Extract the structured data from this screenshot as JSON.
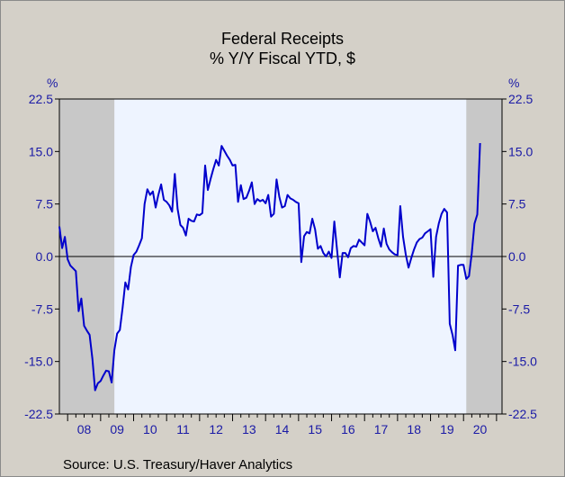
{
  "chart_data": {
    "type": "line",
    "title": "Federal Receipts",
    "subtitle": "% Y/Y   Fiscal YTD, $",
    "y_unit_left": "%",
    "y_unit_right": "%",
    "source": "Source:  U.S. Treasury/Haver Analytics",
    "ylim": [
      -22.5,
      22.5
    ],
    "y_ticks": [
      "22.5",
      "15.0",
      "7.5",
      "0.0",
      "-7.5",
      "-15.0",
      "-22.5"
    ],
    "x_range": [
      2007.75,
      2021.1667
    ],
    "x_ticks": [
      "08",
      "09",
      "10",
      "11",
      "12",
      "13",
      "14",
      "15",
      "16",
      "17",
      "18",
      "19",
      "20"
    ],
    "grid": false,
    "recessions": [
      [
        2007.75,
        2009.4167
      ],
      [
        2020.0833,
        2021.1667
      ]
    ],
    "colors": {
      "line": "#0000cc",
      "plot_bg": "#eef4ff",
      "recession": "#c8c8c8",
      "axis_text": "#1a1aa6"
    },
    "series": [
      {
        "x_start": 2007.75,
        "step_months": 1,
        "values": [
          4.3,
          1.2,
          2.8,
          -0.4,
          -1.3,
          -1.7,
          -2.1,
          -7.8,
          -6.0,
          -9.9,
          -10.6,
          -11.2,
          -14.6,
          -19.1,
          -18.1,
          -17.8,
          -17.0,
          -16.3,
          -16.4,
          -18.0,
          -13.4,
          -11.0,
          -10.5,
          -7.3,
          -3.7,
          -4.7,
          -1.5,
          0.2,
          0.7,
          1.6,
          2.6,
          7.5,
          9.6,
          8.8,
          9.3,
          7.0,
          8.8,
          10.3,
          8.1,
          7.8,
          7.3,
          6.4,
          11.8,
          6.8,
          4.5,
          4.1,
          3.0,
          5.4,
          5.1,
          5.0,
          6.0,
          5.9,
          6.2,
          13.0,
          9.5,
          11.1,
          12.5,
          13.8,
          13.0,
          15.8,
          15.1,
          14.4,
          13.8,
          13.0,
          13.1,
          7.8,
          10.2,
          8.2,
          8.4,
          9.4,
          10.6,
          7.5,
          8.2,
          7.9,
          8.1,
          7.6,
          8.8,
          5.7,
          6.1,
          11.0,
          8.5,
          7.0,
          7.2,
          8.8,
          8.3,
          8.1,
          7.8,
          7.6,
          -0.8,
          2.9,
          3.5,
          3.3,
          5.4,
          3.9,
          1.1,
          1.5,
          0.5,
          0.0,
          0.7,
          -0.2,
          5.0,
          1.0,
          -3.0,
          0.5,
          0.5,
          -0.1,
          1.2,
          1.5,
          1.4,
          2.4,
          2.0,
          1.6,
          6.1,
          5.0,
          3.6,
          4.1,
          2.6,
          1.4,
          4.0,
          1.8,
          1.0,
          0.6,
          0.3,
          0.2,
          7.2,
          2.8,
          0.3,
          -1.6,
          -0.2,
          1.0,
          2.0,
          2.5,
          2.7,
          3.3,
          3.6,
          3.9,
          -2.9,
          2.8,
          4.7,
          6.1,
          6.8,
          6.3,
          -9.6,
          -11.2,
          -13.4,
          -1.3,
          -1.2,
          -1.2,
          -3.2,
          -2.8,
          0.5,
          4.7,
          6.0,
          16.2
        ]
      }
    ],
    "zero_line": 0
  }
}
